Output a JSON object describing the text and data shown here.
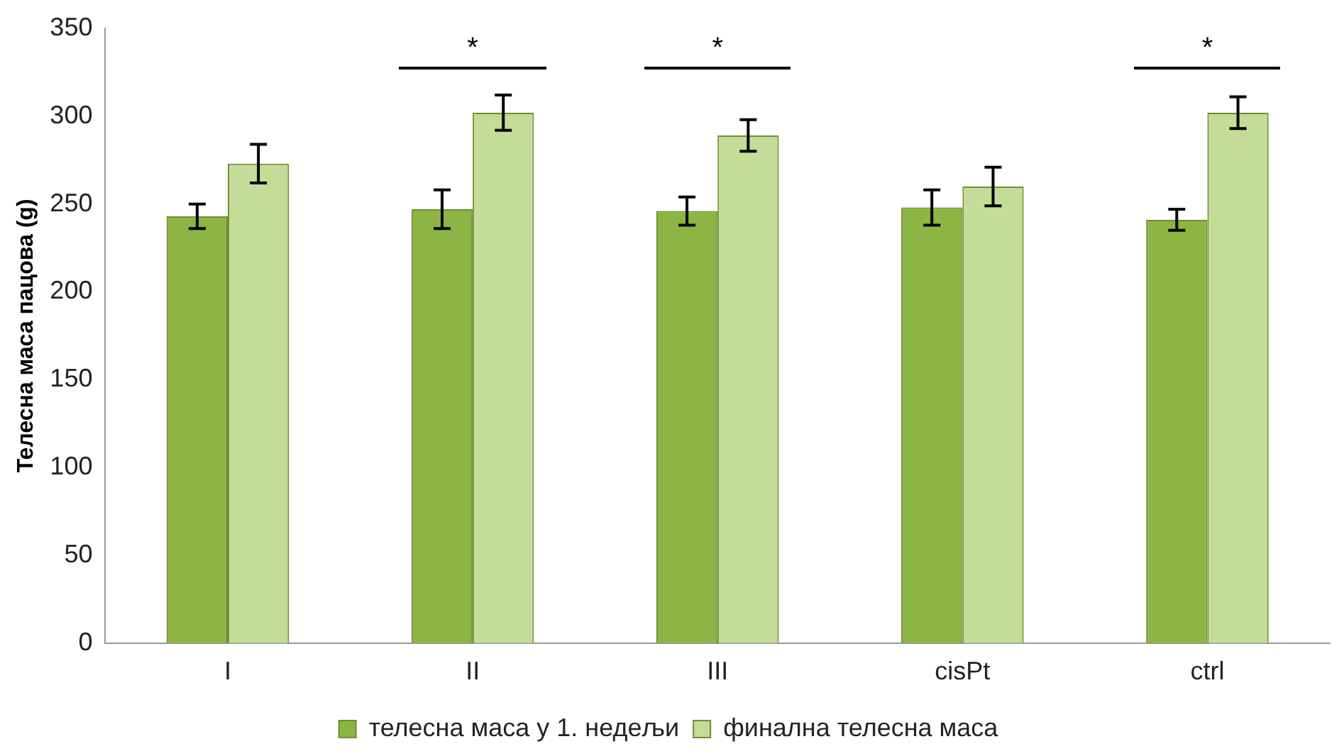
{
  "chart_data": {
    "type": "bar",
    "ylabel": "Телесна маса пацова (g)",
    "categories": [
      "I",
      "II",
      "III",
      "cisPt",
      "ctrl"
    ],
    "series": [
      {
        "name": "телесна маса у 1. недељи",
        "color": "#8db543",
        "values": [
          243,
          247,
          246,
          248,
          241
        ],
        "errors": [
          7,
          11,
          8,
          10,
          6
        ]
      },
      {
        "name": "финална телесна маса",
        "color": "#c3dc98",
        "values": [
          273,
          302,
          289,
          260,
          302
        ],
        "errors": [
          11,
          10,
          9,
          11,
          9
        ]
      }
    ],
    "ylim": [
      0,
      350
    ],
    "yticks": [
      0,
      50,
      100,
      150,
      200,
      250,
      300,
      350
    ],
    "grid": false,
    "legend": "bottom",
    "annotations": [
      "*",
      "*",
      "*"
    ]
  }
}
